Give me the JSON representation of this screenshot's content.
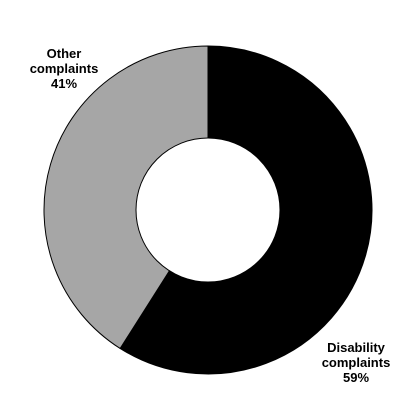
{
  "chart_data": {
    "type": "pie",
    "style": "donut",
    "slices": [
      {
        "name": "Disability complaints",
        "label_lines": [
          "Disability",
          "complaints",
          "59%"
        ],
        "value": 59,
        "color": "#000000"
      },
      {
        "name": "Other complaints",
        "label_lines": [
          "Other",
          "complaints",
          "41%"
        ],
        "value": 41,
        "color": "#a6a6a6"
      }
    ],
    "start_angle": "12 o'clock",
    "direction": "clockwise",
    "legend": "none"
  }
}
